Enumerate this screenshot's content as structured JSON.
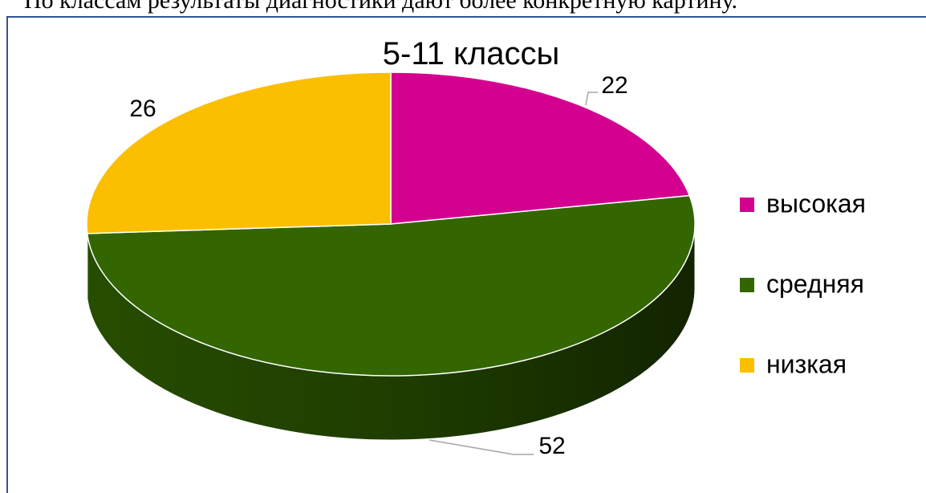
{
  "header_text": "По классам результаты диагностики дают более конкретную картину.",
  "chart_data": {
    "type": "pie",
    "title": "5-11 классы",
    "categories": [
      "высокая",
      "средняя",
      "низкая"
    ],
    "values": [
      22,
      52,
      26
    ],
    "colors": [
      "#d4008f",
      "#336600",
      "#fbbf00"
    ],
    "legend": "right"
  }
}
